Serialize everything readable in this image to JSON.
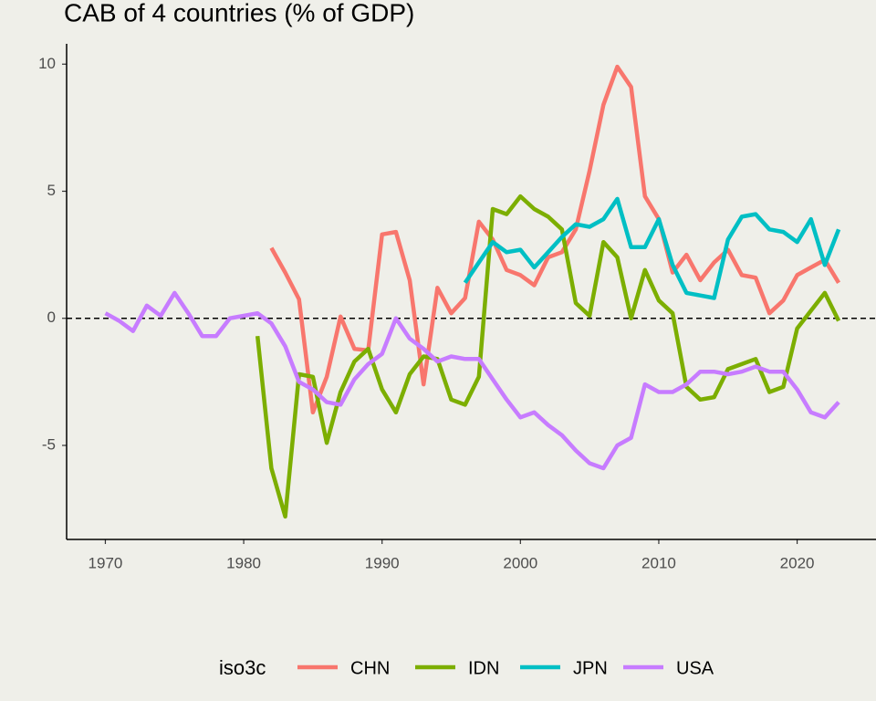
{
  "chart_data": {
    "type": "line",
    "title": "CAB of 4 countries (% of GDP)",
    "legend_title": "iso3c",
    "legend_position": "bottom",
    "x": [
      1970,
      1971,
      1972,
      1973,
      1974,
      1975,
      1976,
      1977,
      1978,
      1979,
      1980,
      1981,
      1982,
      1983,
      1984,
      1985,
      1986,
      1987,
      1988,
      1989,
      1990,
      1991,
      1992,
      1993,
      1994,
      1995,
      1996,
      1997,
      1998,
      1999,
      2000,
      2001,
      2002,
      2003,
      2004,
      2005,
      2006,
      2007,
      2008,
      2009,
      2010,
      2011,
      2012,
      2013,
      2014,
      2015,
      2016,
      2017,
      2018,
      2019,
      2020,
      2021,
      2022,
      2023
    ],
    "series": [
      {
        "name": "CHN",
        "color": "#f8766d",
        "values": [
          null,
          null,
          null,
          null,
          null,
          null,
          null,
          null,
          null,
          null,
          null,
          null,
          2.77,
          1.8,
          0.75,
          -3.7,
          -2.3,
          0.07,
          -1.2,
          -1.26,
          3.3,
          3.4,
          1.5,
          -2.6,
          1.2,
          0.2,
          0.8,
          3.8,
          3.1,
          1.9,
          1.7,
          1.3,
          2.4,
          2.6,
          3.5,
          5.8,
          8.4,
          9.9,
          9.1,
          4.8,
          3.9,
          1.8,
          2.5,
          1.5,
          2.2,
          2.7,
          1.7,
          1.6,
          0.2,
          0.7,
          1.7,
          2.0,
          2.3,
          1.4
        ]
      },
      {
        "name": "IDN",
        "color": "#7cae00",
        "values": [
          null,
          null,
          null,
          null,
          null,
          null,
          null,
          null,
          null,
          null,
          null,
          -0.7,
          -5.9,
          -7.8,
          -2.2,
          -2.3,
          -4.9,
          -2.9,
          -1.7,
          -1.2,
          -2.8,
          -3.7,
          -2.2,
          -1.5,
          -1.6,
          -3.2,
          -3.4,
          -2.3,
          4.3,
          4.1,
          4.8,
          4.3,
          4.0,
          3.5,
          0.6,
          0.1,
          3.0,
          2.4,
          0.0,
          1.9,
          0.7,
          0.2,
          -2.7,
          -3.2,
          -3.1,
          -2.0,
          -1.8,
          -1.6,
          -2.9,
          -2.7,
          -0.4,
          0.3,
          1.0,
          -0.1
        ]
      },
      {
        "name": "JPN",
        "color": "#00bfc4",
        "values": [
          null,
          null,
          null,
          null,
          null,
          null,
          null,
          null,
          null,
          null,
          null,
          null,
          null,
          null,
          null,
          null,
          null,
          null,
          null,
          null,
          null,
          null,
          null,
          null,
          null,
          null,
          1.4,
          2.2,
          3.0,
          2.6,
          2.7,
          2.0,
          2.6,
          3.2,
          3.7,
          3.6,
          3.9,
          4.7,
          2.8,
          2.8,
          3.9,
          2.1,
          1.0,
          0.9,
          0.8,
          3.1,
          4.0,
          4.1,
          3.5,
          3.4,
          3.0,
          3.9,
          2.1,
          3.5
        ]
      },
      {
        "name": "USA",
        "color": "#c77cff",
        "values": [
          0.2,
          -0.1,
          -0.5,
          0.5,
          0.1,
          1.0,
          0.2,
          -0.7,
          -0.7,
          0.0,
          0.1,
          0.2,
          -0.2,
          -1.1,
          -2.5,
          -2.8,
          -3.3,
          -3.4,
          -2.4,
          -1.8,
          -1.4,
          0.0,
          -0.8,
          -1.2,
          -1.7,
          -1.5,
          -1.6,
          -1.6,
          -2.4,
          -3.2,
          -3.9,
          -3.7,
          -4.2,
          -4.6,
          -5.2,
          -5.7,
          -5.9,
          -5.0,
          -4.7,
          -2.6,
          -2.9,
          -2.9,
          -2.6,
          -2.1,
          -2.1,
          -2.2,
          -2.1,
          -1.9,
          -2.1,
          -2.1,
          -2.8,
          -3.7,
          -3.9,
          -3.3
        ]
      }
    ],
    "reference_line": 0,
    "xlim": [
      1967.2,
      2025.7
    ],
    "xticks": [
      1970,
      1980,
      1990,
      2000,
      2010,
      2020
    ],
    "ylim": [
      -8.7,
      10.8
    ],
    "yticks": [
      -5,
      0,
      5,
      10
    ],
    "grid": false
  }
}
